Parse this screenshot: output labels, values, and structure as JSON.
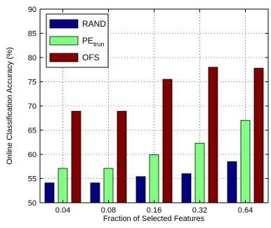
{
  "chart_data": {
    "type": "bar",
    "title": "",
    "xlabel": "Fraction of Selected Features",
    "ylabel": "Online Classification Accuracy (%)",
    "ylim": [
      50,
      90
    ],
    "yticks": [
      50,
      55,
      60,
      65,
      70,
      75,
      80,
      85,
      90
    ],
    "categories": [
      "0.04",
      "0.08",
      "0.16",
      "0.32",
      "0.64"
    ],
    "grid": true,
    "legend_position": "top-left",
    "series": [
      {
        "name": "RAND",
        "color": "#000080",
        "values": [
          54.1,
          54.1,
          55.4,
          56.0,
          58.5
        ]
      },
      {
        "name": "PE",
        "name_subscript": "trun",
        "color": "#80ff80",
        "values": [
          57.1,
          57.1,
          59.9,
          62.3,
          67.0
        ]
      },
      {
        "name": "OFS",
        "color": "#800000",
        "values": [
          68.9,
          68.9,
          75.5,
          78.0,
          77.8
        ]
      }
    ]
  }
}
